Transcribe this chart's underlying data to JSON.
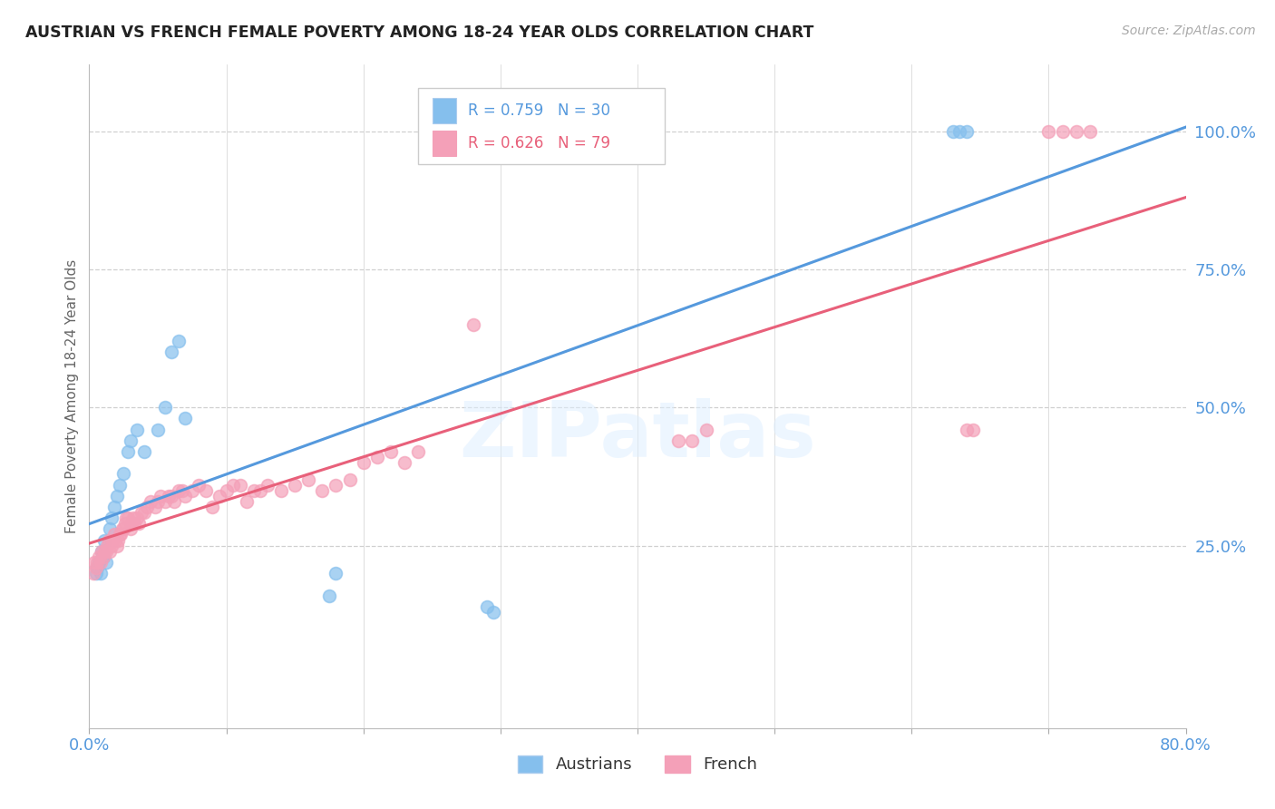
{
  "title": "AUSTRIAN VS FRENCH FEMALE POVERTY AMONG 18-24 YEAR OLDS CORRELATION CHART",
  "source": "Source: ZipAtlas.com",
  "ylabel": "Female Poverty Among 18-24 Year Olds",
  "xlim": [
    0.0,
    0.8
  ],
  "ylim": [
    -0.08,
    1.12
  ],
  "xticks": [
    0.0,
    0.1,
    0.2,
    0.3,
    0.4,
    0.5,
    0.6,
    0.7,
    0.8
  ],
  "xticklabels": [
    "0.0%",
    "",
    "",
    "",
    "",
    "",
    "",
    "",
    "80.0%"
  ],
  "yticks_right": [
    0.25,
    0.5,
    0.75,
    1.0
  ],
  "ytick_right_labels": [
    "25.0%",
    "50.0%",
    "75.0%",
    "100.0%"
  ],
  "austrian_color": "#85bfed",
  "french_color": "#f4a0b8",
  "trendline_austrian_color": "#5599dd",
  "trendline_french_color": "#e8607a",
  "R_austrian": 0.759,
  "N_austrian": 30,
  "R_french": 0.626,
  "N_french": 79,
  "watermark": "ZIPatlas",
  "background_color": "#ffffff",
  "grid_color": "#d0d0d0",
  "austrian_x": [
    0.005,
    0.006,
    0.007,
    0.008,
    0.009,
    0.01,
    0.011,
    0.012,
    0.015,
    0.016,
    0.018,
    0.02,
    0.022,
    0.025,
    0.028,
    0.03,
    0.035,
    0.04,
    0.05,
    0.055,
    0.06,
    0.065,
    0.07,
    0.175,
    0.18,
    0.29,
    0.295,
    0.63,
    0.635,
    0.64
  ],
  "austrian_y": [
    0.2,
    0.21,
    0.22,
    0.2,
    0.24,
    0.23,
    0.26,
    0.22,
    0.28,
    0.3,
    0.32,
    0.34,
    0.36,
    0.38,
    0.42,
    0.44,
    0.46,
    0.42,
    0.46,
    0.5,
    0.6,
    0.62,
    0.48,
    0.16,
    0.2,
    0.14,
    0.13,
    1.0,
    1.0,
    1.0
  ],
  "french_x": [
    0.003,
    0.004,
    0.005,
    0.006,
    0.007,
    0.008,
    0.009,
    0.01,
    0.011,
    0.012,
    0.013,
    0.014,
    0.015,
    0.016,
    0.017,
    0.018,
    0.019,
    0.02,
    0.021,
    0.022,
    0.023,
    0.024,
    0.025,
    0.026,
    0.027,
    0.028,
    0.03,
    0.031,
    0.032,
    0.033,
    0.035,
    0.036,
    0.038,
    0.04,
    0.042,
    0.045,
    0.048,
    0.05,
    0.052,
    0.055,
    0.058,
    0.06,
    0.062,
    0.065,
    0.068,
    0.07,
    0.075,
    0.08,
    0.085,
    0.09,
    0.095,
    0.1,
    0.105,
    0.11,
    0.115,
    0.12,
    0.125,
    0.13,
    0.14,
    0.15,
    0.16,
    0.17,
    0.18,
    0.19,
    0.2,
    0.21,
    0.22,
    0.23,
    0.24,
    0.28,
    0.43,
    0.44,
    0.45,
    0.64,
    0.645,
    0.7,
    0.71,
    0.72,
    0.73
  ],
  "french_y": [
    0.2,
    0.22,
    0.21,
    0.22,
    0.23,
    0.22,
    0.24,
    0.23,
    0.24,
    0.24,
    0.25,
    0.26,
    0.24,
    0.25,
    0.26,
    0.27,
    0.26,
    0.25,
    0.26,
    0.27,
    0.27,
    0.28,
    0.28,
    0.29,
    0.3,
    0.3,
    0.28,
    0.29,
    0.3,
    0.29,
    0.3,
    0.29,
    0.31,
    0.31,
    0.32,
    0.33,
    0.32,
    0.33,
    0.34,
    0.33,
    0.34,
    0.34,
    0.33,
    0.35,
    0.35,
    0.34,
    0.35,
    0.36,
    0.35,
    0.32,
    0.34,
    0.35,
    0.36,
    0.36,
    0.33,
    0.35,
    0.35,
    0.36,
    0.35,
    0.36,
    0.37,
    0.35,
    0.36,
    0.37,
    0.4,
    0.41,
    0.42,
    0.4,
    0.42,
    0.65,
    0.44,
    0.44,
    0.46,
    0.46,
    0.46,
    1.0,
    1.0,
    1.0,
    1.0
  ]
}
